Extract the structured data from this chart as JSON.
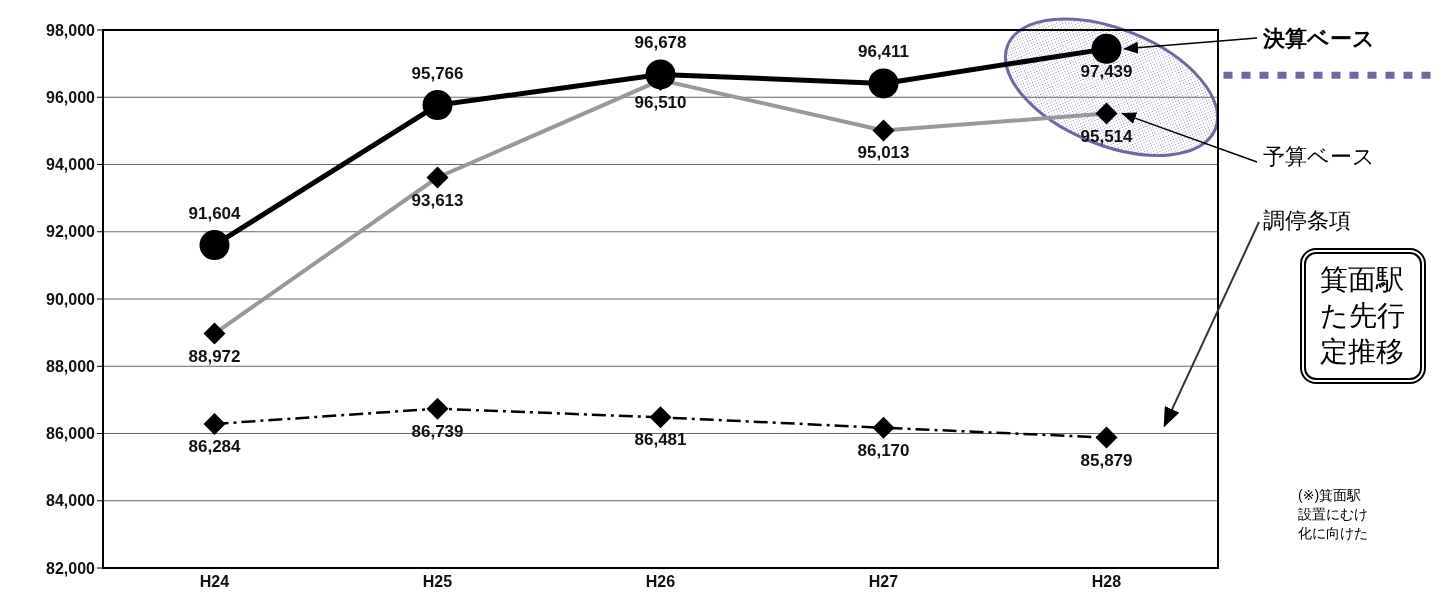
{
  "chart_data": {
    "type": "line",
    "categories": [
      "H24",
      "H25",
      "H26",
      "H27",
      "H28"
    ],
    "series": [
      {
        "name": "決算ベース",
        "color": "#000000",
        "marker": "circle",
        "line_style": "solid",
        "values": [
          91604,
          95766,
          96678,
          96411,
          97439
        ],
        "value_labels": [
          "91,604",
          "95,766",
          "96,678",
          "96,411",
          "97,439"
        ]
      },
      {
        "name": "予算ベース",
        "color": "#999999",
        "marker": "diamond",
        "line_style": "solid",
        "values": [
          88972,
          93613,
          96510,
          95013,
          95514
        ],
        "value_labels": [
          "88,972",
          "93,613",
          "96,510",
          "95,013",
          "95,514"
        ]
      },
      {
        "name": "調停条項",
        "color": "#000000",
        "marker": "diamond",
        "line_style": "dashed",
        "values": [
          86284,
          86739,
          86481,
          86170,
          85879
        ],
        "value_labels": [
          "86,284",
          "86,739",
          "86,481",
          "86,170",
          "85,879"
        ]
      }
    ],
    "ylim": [
      82000,
      98000
    ],
    "yticks": [
      {
        "value": 82000,
        "label": "82,000"
      },
      {
        "value": 84000,
        "label": "84,000"
      },
      {
        "value": 86000,
        "label": "86,000"
      },
      {
        "value": 88000,
        "label": "88,000"
      },
      {
        "value": 90000,
        "label": "90,000"
      },
      {
        "value": 92000,
        "label": "92,000"
      },
      {
        "value": 94000,
        "label": "94,000"
      },
      {
        "value": 96000,
        "label": "96,000"
      },
      {
        "value": 98000,
        "label": "98,000"
      }
    ],
    "grid": "y",
    "legend": false,
    "annotations": [
      "箕面駅た先行定推移",
      "(※)箕面駅設置にむけ化に向けた"
    ]
  }
}
